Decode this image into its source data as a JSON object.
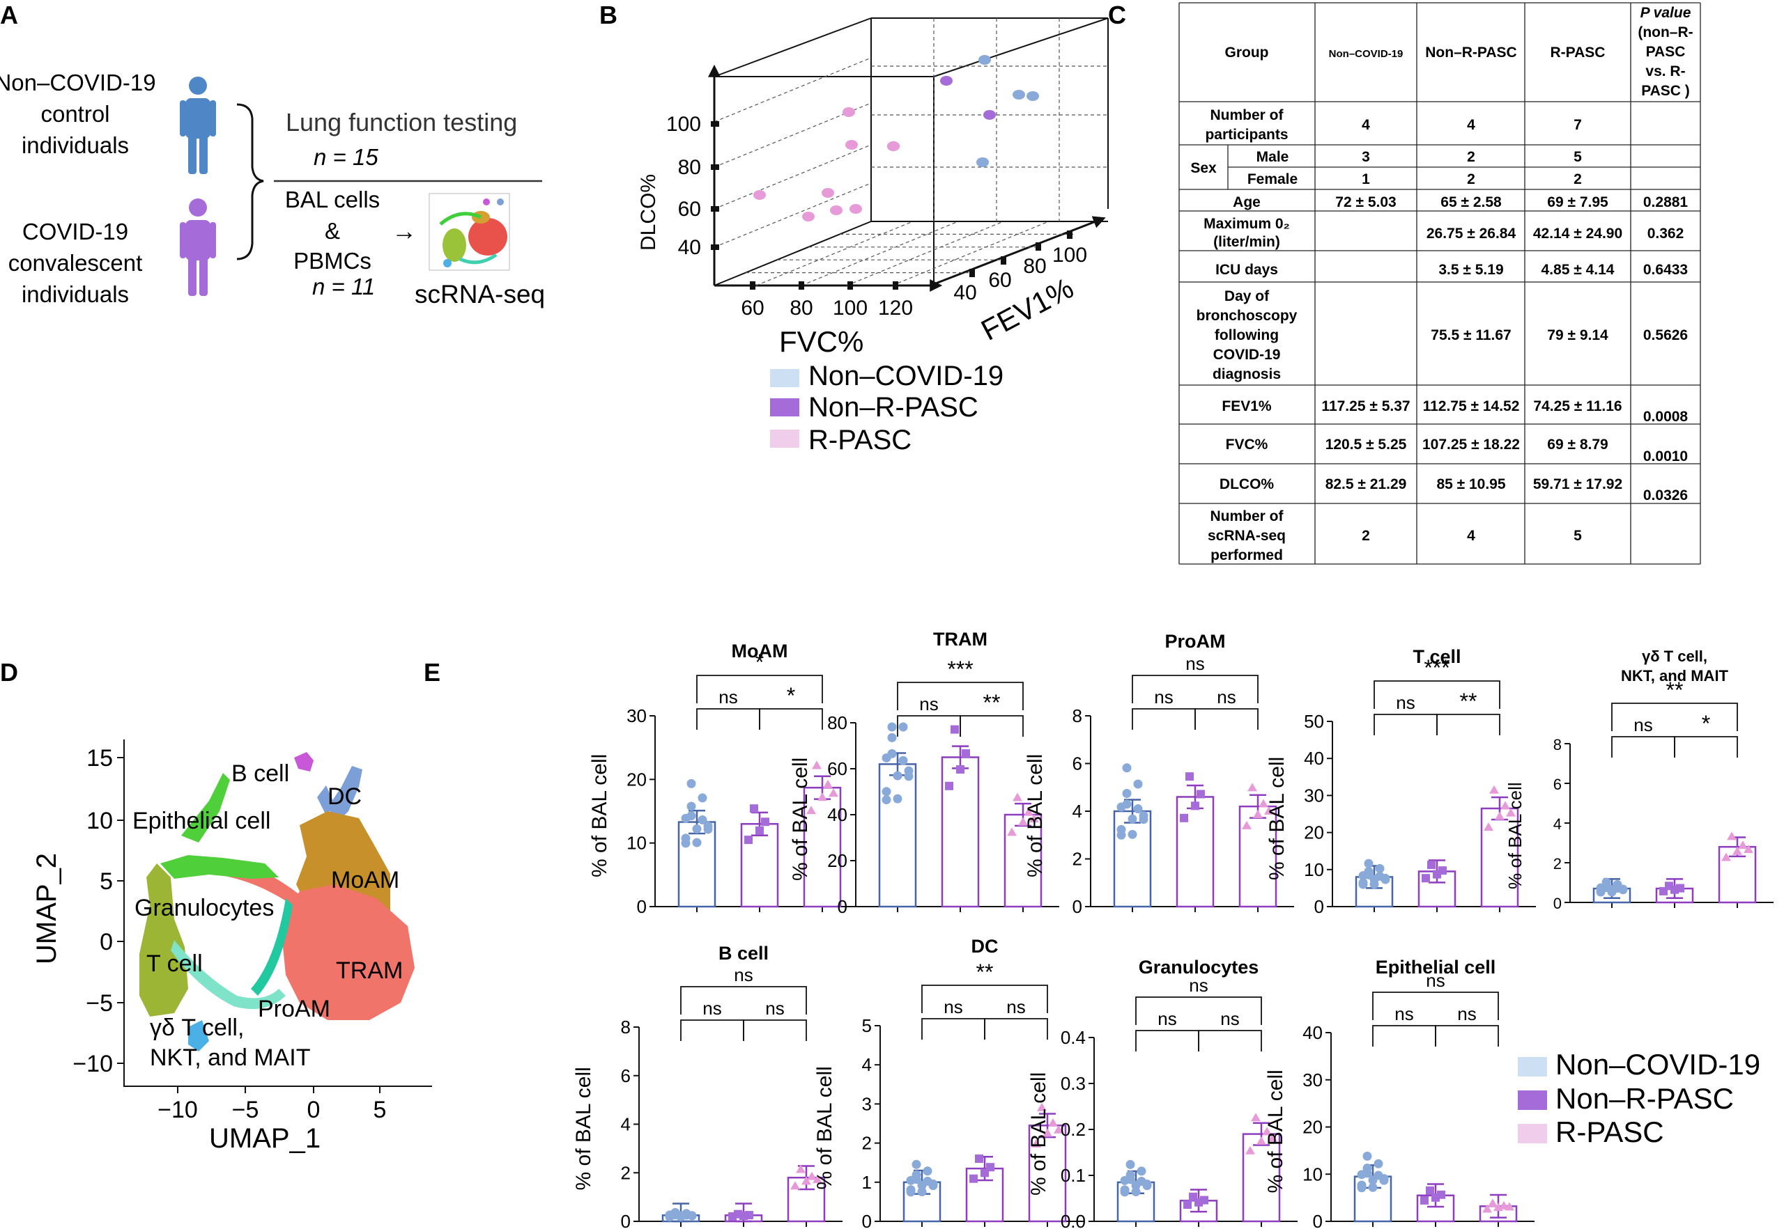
{
  "panels": {
    "a": "A",
    "b": "B",
    "c": "C",
    "d": "D",
    "e": "E"
  },
  "panel_a": {
    "group1": [
      "Non–COVID-19",
      "control",
      "individuals"
    ],
    "group2": [
      "COVID-19",
      "convalescent",
      "individuals"
    ],
    "lung_title": "Lung function testing",
    "lung_n": "n = 15",
    "bal": [
      "BAL cells",
      "&",
      "PBMCs"
    ],
    "bal_n": "n = 11",
    "arrow": "→",
    "seq_label": "scRNA-seq",
    "colors": {
      "control": "#4f86c6",
      "covid": "#a46bd9"
    }
  },
  "colors": {
    "non_covid": "#89a9d8",
    "non_r_pasc": "#a46bd9",
    "r_pasc": "#e79ad8",
    "non_covid_bar": "#4664a8",
    "pasc_bar": "#8e3dc0"
  },
  "chart_data": [
    {
      "id": "scatter3d",
      "type": "scatter",
      "xlabel": "FVC%",
      "ylabel": "DLCO%",
      "zlabel": "FEV1%",
      "x_ticks": [
        "60",
        "80",
        "100",
        "120"
      ],
      "y_ticks": [
        "100",
        "80",
        "60",
        "40"
      ],
      "z_ticks": [
        "40",
        "60",
        "80",
        "100"
      ],
      "legend": [
        "Non–COVID-19",
        "Non–R-PASC",
        "R-PASC"
      ],
      "legend_colors": [
        "#cddff2",
        "#a46bd9",
        "#f0cdea"
      ]
    },
    {
      "id": "umap",
      "type": "scatter",
      "xlabel": "UMAP_1",
      "ylabel": "UMAP_2",
      "x_ticks": [
        "−10",
        "−5",
        "0",
        "5"
      ],
      "y_ticks": [
        "15",
        "10",
        "5",
        "0",
        "−5",
        "−10"
      ],
      "clusters": [
        {
          "name": "B cell",
          "color": "#c858d8"
        },
        {
          "name": "DC",
          "color": "#7b9fd6"
        },
        {
          "name": "Epithelial cell",
          "color": "#4fcf3a"
        },
        {
          "name": "MoAM",
          "color": "#c8902a"
        },
        {
          "name": "Granulocytes",
          "color": "#22c8a0"
        },
        {
          "name": "TRAM",
          "color": "#f0746a"
        },
        {
          "name": "T cell",
          "color": "#9db534"
        },
        {
          "name": "ProAM",
          "color": "#7ee3c8"
        },
        {
          "name": "γδ T cell,",
          "color": "#4bb0e6"
        }
      ],
      "cluster_extra": "NKT, and MAIT"
    },
    {
      "id": "bars",
      "type": "bar",
      "ylabel": "% of BAL cell",
      "groups": [
        "Non–COVID-19",
        "Non–R-PASC",
        "R-PASC"
      ],
      "legend_colors": [
        "#cddff2",
        "#a46bd9",
        "#f0cdea"
      ],
      "panels": [
        {
          "title": "MoAM",
          "ylim": [
            0,
            30
          ],
          "ticks": [
            "0",
            "10",
            "20",
            "30"
          ],
          "values": [
            13.3,
            13.0,
            18.7
          ],
          "sig": [
            "*",
            "ns",
            "*"
          ]
        },
        {
          "title": "TRAM",
          "ylim": [
            0,
            80
          ],
          "ticks": [
            "0",
            "20",
            "40",
            "60",
            "80"
          ],
          "values": [
            62,
            65,
            40
          ],
          "sig": [
            "***",
            "ns",
            "**"
          ]
        },
        {
          "title": "ProAM",
          "ylim": [
            0,
            8
          ],
          "ticks": [
            "0",
            "2",
            "4",
            "6",
            "8"
          ],
          "values": [
            4.0,
            4.6,
            4.2
          ],
          "sig": [
            "ns",
            "ns",
            "ns"
          ]
        },
        {
          "title": "T cell",
          "ylim": [
            0,
            50
          ],
          "ticks": [
            "0",
            "10",
            "20",
            "30",
            "40",
            "50"
          ],
          "values": [
            8,
            9.5,
            26.5
          ],
          "sig": [
            "***",
            "ns",
            "**"
          ]
        },
        {
          "title": "γδ T cell,",
          "title2": "NKT, and MAIT",
          "ylim": [
            0,
            8
          ],
          "ticks": [
            "0",
            "2",
            "4",
            "6",
            "8"
          ],
          "values": [
            0.7,
            0.7,
            2.8
          ],
          "sig": [
            "**",
            "ns",
            "*"
          ]
        },
        {
          "title": "B cell",
          "ylim": [
            0,
            8
          ],
          "ticks": [
            "0",
            "2",
            "4",
            "6",
            "8"
          ],
          "values": [
            0.25,
            0.25,
            1.8
          ],
          "sig": [
            "ns",
            "ns",
            "ns"
          ]
        },
        {
          "title": "DC",
          "ylim": [
            0,
            5
          ],
          "ticks": [
            "0",
            "1",
            "2",
            "3",
            "4",
            "5"
          ],
          "values": [
            1.0,
            1.35,
            2.45
          ],
          "sig": [
            "**",
            "ns",
            "ns"
          ]
        },
        {
          "title": "Granulocytes",
          "ylim": [
            0,
            0.4
          ],
          "ticks": [
            "0.0",
            "0.1",
            "0.2",
            "0.3",
            "0.4"
          ],
          "values": [
            0.085,
            0.045,
            0.19
          ],
          "sig": [
            "ns",
            "ns",
            "ns"
          ]
        },
        {
          "title": "Epithelial cell",
          "ylim": [
            0,
            40
          ],
          "ticks": [
            "0",
            "10",
            "20",
            "30",
            "40"
          ],
          "values": [
            9.5,
            5.5,
            3.2
          ],
          "sig": [
            "ns",
            "ns",
            "ns"
          ]
        }
      ]
    }
  ],
  "table": {
    "header": {
      "group": "Group",
      "c1": "Non–COVID-19",
      "c2": "Non–R-PASC",
      "c3": "R-PASC",
      "p": [
        "P value",
        "(non–R-",
        "PASC",
        "vs. R-",
        "PASC )"
      ]
    },
    "rows": {
      "participants": {
        "label": [
          "Number of",
          "participants"
        ],
        "v": [
          "4",
          "4",
          "7"
        ]
      },
      "sex": "Sex",
      "male": {
        "label": "Male",
        "v": [
          "3",
          "2",
          "5"
        ]
      },
      "female": {
        "label": "Female",
        "v": [
          "1",
          "2",
          "2"
        ]
      },
      "age": {
        "label": "Age",
        "v": [
          "72 ± 5.03",
          "65 ± 2.58",
          "69 ± 7.95"
        ],
        "p": "0.2881"
      },
      "oxygen": {
        "label": [
          "Maximum  0₂",
          "(liter/min)"
        ],
        "v": [
          "26.75 ± 26.84",
          "42.14 ± 24.90"
        ],
        "p": "0.362"
      },
      "icu": {
        "label": "ICU days",
        "v": [
          "3.5 ± 5.19",
          "4.85 ± 4.14"
        ],
        "p": "0.6433"
      },
      "broncho": {
        "label": [
          "Day of",
          "bronchoscopy",
          "following",
          "COVID-19",
          "diagnosis"
        ],
        "v": [
          "75.5 ± 11.67",
          "79 ± 9.14"
        ],
        "p": "0.5626"
      },
      "fev1": {
        "label": "FEV1%",
        "v": [
          "117.25 ± 5.37",
          "112.75 ± 14.52",
          "74.25 ± 11.16"
        ],
        "p": "0.0008"
      },
      "fvc": {
        "label": "FVC%",
        "v": [
          "120.5 ± 5.25",
          "107.25 ± 18.22",
          "69 ± 8.79"
        ],
        "p": "0.0010"
      },
      "dlco": {
        "label": "DLCO%",
        "v": [
          "82.5 ± 21.29",
          "85 ± 10.95",
          "59.71 ± 17.92"
        ],
        "p": "0.0326"
      },
      "scrna": {
        "label": [
          "Number of",
          "scRNA-seq",
          "performed"
        ],
        "v": [
          "2",
          "4",
          "5"
        ]
      }
    }
  }
}
